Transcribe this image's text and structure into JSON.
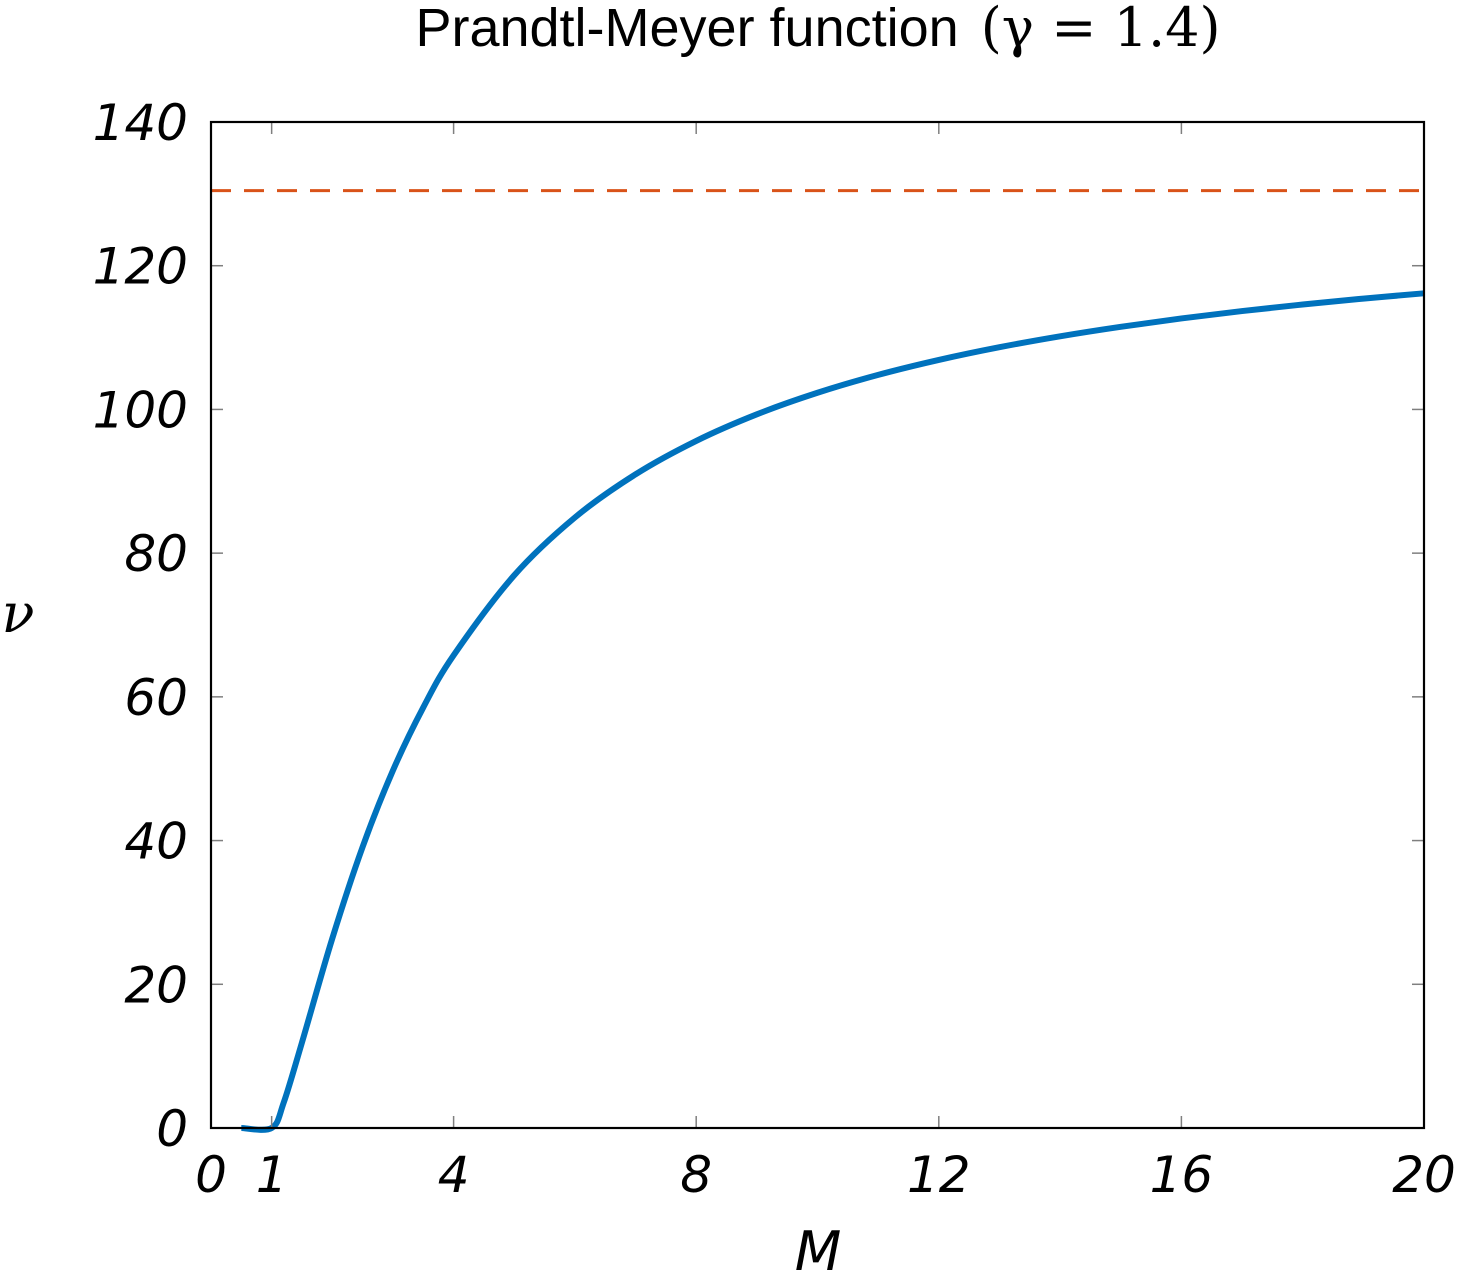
{
  "chart_data": {
    "type": "line",
    "title": "Prandtl-Meyer function",
    "title_math": "(γ = 1.4)",
    "xlabel": "M",
    "ylabel": "ν",
    "xlim": [
      0,
      20
    ],
    "ylim": [
      0,
      140
    ],
    "x_ticks": [
      "0",
      "1",
      "4",
      "8",
      "12",
      "16",
      "20"
    ],
    "y_ticks": [
      "0",
      "20",
      "40",
      "60",
      "80",
      "100",
      "120",
      "140"
    ],
    "grid": false,
    "series": [
      {
        "color": "#0072bd",
        "style": "solid",
        "x": [
          0.5,
          1,
          1.2,
          1.5,
          2,
          2.5,
          3,
          3.5,
          4,
          5,
          6,
          7,
          8,
          9,
          10,
          11,
          12,
          13,
          14,
          15,
          16,
          17,
          18,
          19,
          20
        ],
        "y": [
          0,
          0,
          3.56,
          11.91,
          26.38,
          39.12,
          49.76,
          58.53,
          65.78,
          76.92,
          84.96,
          90.97,
          95.62,
          99.32,
          102.32,
          104.81,
          106.89,
          108.66,
          110.18,
          111.5,
          112.66,
          113.69,
          114.6,
          115.42,
          116.16
        ]
      },
      {
        "color": "#d95319",
        "style": "dashed",
        "x": [
          0,
          20
        ],
        "y": [
          130.45,
          130.45
        ]
      }
    ]
  }
}
